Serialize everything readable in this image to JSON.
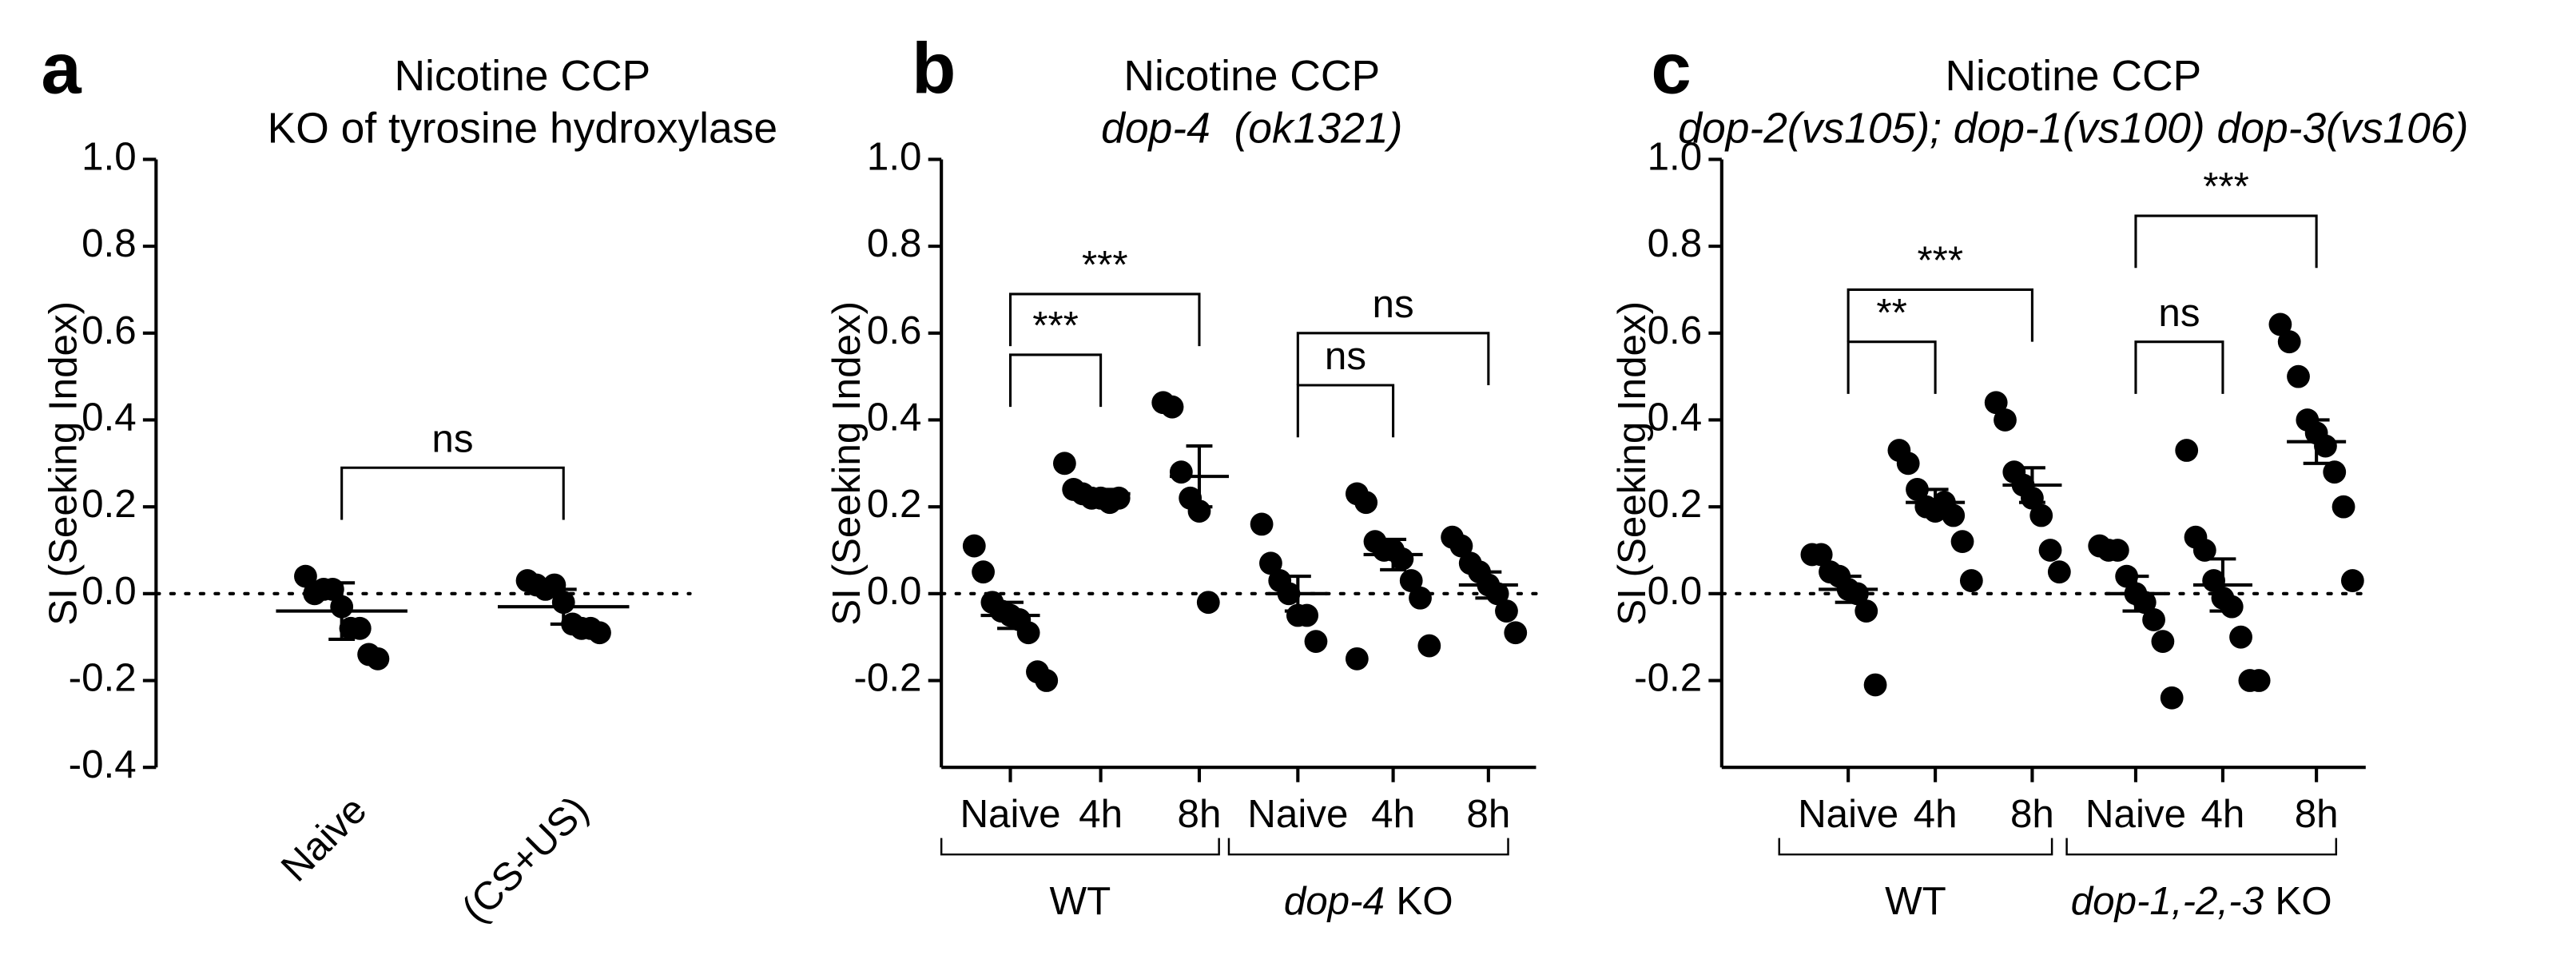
{
  "chart_data": [
    {
      "type": "scatter",
      "panel": "a",
      "title": "Nicotine CCP",
      "subtitle": "KO of tyrosine hydroxylase",
      "ylabel": "SI (Seeking Index)",
      "ylim": [
        -0.4,
        1.0
      ],
      "yticks": [
        -0.4,
        -0.2,
        {
          "value": 0,
          "label": "0.0"
        },
        0.2,
        0.4,
        0.6,
        0.8,
        {
          "value": 1,
          "label": "1.0"
        }
      ],
      "hline": 0,
      "rotated_labels": true,
      "categories": [
        "Naive",
        "(CS+US)"
      ],
      "points": [
        [
          0.04,
          0.0,
          0.01,
          0.01,
          -0.03,
          -0.08,
          -0.08,
          -0.14,
          -0.15
        ],
        [
          0.03,
          0.02,
          0.01,
          0.02,
          -0.02,
          -0.07,
          -0.08,
          -0.08,
          -0.09
        ]
      ],
      "means": [
        -0.04,
        -0.03
      ],
      "errors": [
        0.065,
        0.04
      ],
      "brackets": [
        {
          "from": 0,
          "to": 1,
          "label": "ns"
        }
      ]
    },
    {
      "type": "scatter",
      "panel": "b",
      "title": "Nicotine CCP",
      "subtitle": "dop-4  (ok1321)",
      "subtitle_italic": true,
      "ylabel": "SI (Seeking Index)",
      "ylim": [
        -0.4,
        1.0
      ],
      "yticks": [
        -0.2,
        {
          "value": 0,
          "label": "0.0"
        },
        0.2,
        0.4,
        0.6,
        0.8,
        {
          "value": 1,
          "label": "1.0"
        }
      ],
      "hline": 0,
      "categories": [
        "Naive",
        "4h",
        "8h",
        "Naive",
        "4h",
        "8h"
      ],
      "groups": [
        {
          "label": "WT",
          "from": 0,
          "to": 2
        },
        {
          "label_italic": "dop-4",
          "label": "KO",
          "from": 3,
          "to": 5
        }
      ],
      "points": [
        [
          0.11,
          0.05,
          -0.02,
          -0.04,
          -0.05,
          -0.06,
          -0.09,
          -0.18,
          -0.2
        ],
        [
          0.3,
          0.24,
          0.23,
          0.22,
          0.22,
          0.21,
          0.22
        ],
        [
          0.44,
          0.43,
          0.28,
          0.22,
          0.19,
          -0.02
        ],
        [
          0.16,
          0.07,
          0.03,
          0.0,
          -0.05,
          -0.05,
          -0.11
        ],
        [
          0.23,
          0.21,
          0.12,
          0.1,
          0.1,
          0.08,
          0.03,
          -0.01,
          -0.12,
          -0.15
        ],
        [
          0.13,
          0.11,
          0.07,
          0.05,
          0.02,
          0.0,
          -0.04,
          -0.09
        ]
      ],
      "means": [
        -0.05,
        0.23,
        0.27,
        0.0,
        0.09,
        0.02
      ],
      "errors": [
        0.03,
        0.01,
        0.07,
        0.04,
        0.035,
        0.03
      ],
      "brackets": [
        {
          "from": 0,
          "to": 1,
          "label": "***"
        },
        {
          "from": 0,
          "to": 2,
          "label": "***"
        },
        {
          "from": 3,
          "to": 4,
          "label": "ns"
        },
        {
          "from": 3,
          "to": 5,
          "label": "ns"
        }
      ]
    },
    {
      "type": "scatter",
      "panel": "c",
      "title": "Nicotine CCP",
      "subtitle": "dop-2(vs105); dop-1(vs100) dop-3(vs106)",
      "subtitle_italic": true,
      "ylabel": "SI (Seeking Index)",
      "ylim": [
        -0.4,
        1.0
      ],
      "yticks": [
        -0.2,
        {
          "value": 0,
          "label": "0.0"
        },
        0.2,
        0.4,
        0.6,
        0.8,
        {
          "value": 1,
          "label": "1.0"
        }
      ],
      "hline": 0,
      "categories": [
        "Naive",
        "4h",
        "8h",
        "Naive",
        "4h",
        "8h"
      ],
      "groups": [
        {
          "label": "WT",
          "from": 0,
          "to": 2
        },
        {
          "label_italic": "dop-1,-2,-3",
          "label": "KO",
          "from": 3,
          "to": 5
        }
      ],
      "points": [
        [
          0.09,
          0.09,
          0.05,
          0.04,
          0.01,
          0.0,
          -0.04,
          -0.21
        ],
        [
          0.33,
          0.3,
          0.24,
          0.2,
          0.19,
          0.21,
          0.18,
          0.12,
          0.03
        ],
        [
          0.44,
          0.4,
          0.28,
          0.25,
          0.22,
          0.18,
          0.1,
          0.05
        ],
        [
          0.11,
          0.1,
          0.1,
          0.04,
          0.0,
          -0.02,
          -0.06,
          -0.11,
          -0.24
        ],
        [
          0.33,
          0.13,
          0.1,
          0.03,
          -0.01,
          -0.03,
          -0.1,
          -0.2,
          -0.2
        ],
        [
          0.62,
          0.58,
          0.5,
          0.4,
          0.37,
          0.34,
          0.28,
          0.2,
          0.03
        ]
      ],
      "means": [
        0.01,
        0.21,
        0.25,
        0.0,
        0.02,
        0.35
      ],
      "errors": [
        0.03,
        0.03,
        0.04,
        0.04,
        0.06,
        0.05
      ],
      "brackets": [
        {
          "from": 0,
          "to": 1,
          "label": "**"
        },
        {
          "from": 0,
          "to": 2,
          "label": "***"
        },
        {
          "from": 3,
          "to": 4,
          "label": "ns"
        },
        {
          "from": 3,
          "to": 5,
          "label": "***"
        }
      ]
    }
  ]
}
